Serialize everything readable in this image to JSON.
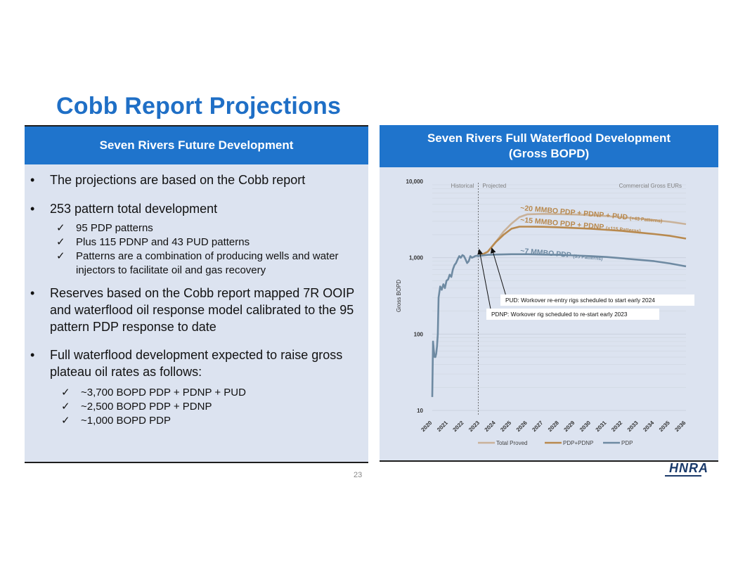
{
  "page": {
    "title": "Cobb Report Projections",
    "page_number": "23",
    "logo_text": "HNRA"
  },
  "left": {
    "header": "Seven Rivers Future Development",
    "bullets": [
      "The projections are based on the Cobb report",
      "253 pattern total development",
      "Reserves based on the Cobb report mapped 7R OOIP and waterflood oil response model calibrated to the 95 pattern PDP response to date",
      "Full waterflood development expected to raise gross plateau oil rates as follows:"
    ],
    "checks_a": [
      "95 PDP patterns",
      "Plus 115 PDNP and 43 PUD patterns",
      "Patterns are a combination of producing wells and water injectors to facilitate oil and gas recovery"
    ],
    "checks_b": [
      "~3,700 BOPD PDP + PDNP + PUD",
      "~2,500 BOPD PDP + PDNP",
      "~1,000 BOPD PDP"
    ],
    "bullet_glyph": "•",
    "check_glyph": "✓"
  },
  "right": {
    "header_line1": "Seven Rivers Full Waterflood Development",
    "header_line2": "(Gross BOPD)"
  },
  "chart_data": {
    "type": "line",
    "title": "Seven Rivers Full Waterflood Development (Gross BOPD)",
    "ylabel": "Gross BOPD",
    "yscale": "log",
    "ylim": [
      10,
      10000
    ],
    "yticks": [
      "10,000",
      "1,000",
      "100",
      "10"
    ],
    "categories": [
      "2020",
      "2021",
      "2022",
      "2023",
      "2024",
      "2025",
      "2026",
      "2027",
      "2028",
      "2029",
      "2030",
      "2031",
      "2032",
      "2033",
      "2034",
      "2035",
      "2036"
    ],
    "annotations": {
      "historical": "Historical",
      "projected": "Projected",
      "eur_header": "Commercial Gross EURs",
      "label_total": "~20 MMBO PDP + PDNP + PUD",
      "label_total_small": "(+43 Patterns)",
      "label_pdnp": "~15 MMBO PDP + PDNP",
      "label_pdnp_small": "(+115 Patterns)",
      "label_pdp": "~7 MMBO PDP",
      "label_pdp_small": "(95 Patterns)",
      "callout_pud": "PUD: Workover re-entry rigs scheduled to start early 2024",
      "callout_pdnp": "PDNP: Workover rig scheduled to re-start early 2023"
    },
    "legend": [
      "Total Proved",
      "PDP+PDNP",
      "PDP"
    ],
    "colors": {
      "total": "#c9b29a",
      "pdnp": "#b8894e",
      "pdp": "#6e8aa2"
    },
    "series": [
      {
        "name": "PDP",
        "x": [
          2020.0,
          2020.05,
          2020.1,
          2020.15,
          2020.2,
          2020.25,
          2020.3,
          2020.35,
          2020.4,
          2020.5,
          2020.6,
          2020.7,
          2020.8,
          2020.9,
          2021.0,
          2021.1,
          2021.2,
          2021.3,
          2021.4,
          2021.5,
          2021.6,
          2021.7,
          2021.8,
          2021.9,
          2022.0,
          2022.1,
          2022.2,
          2022.3,
          2022.4,
          2022.5,
          2022.6,
          2022.7,
          2022.8,
          2022.9,
          2023.0,
          2023.5,
          2024,
          2025,
          2026,
          2027,
          2028,
          2029,
          2030,
          2031,
          2032,
          2033,
          2034,
          2035,
          2036
        ],
        "values": [
          15,
          80,
          60,
          50,
          50,
          55,
          70,
          100,
          300,
          420,
          380,
          450,
          400,
          500,
          520,
          600,
          560,
          700,
          800,
          850,
          950,
          1050,
          1000,
          1080,
          1050,
          950,
          850,
          900,
          1050,
          1000,
          1020,
          1050,
          1060,
          1050,
          1060,
          1090,
          1100,
          1110,
          1110,
          1100,
          1090,
          1070,
          1050,
          1020,
          980,
          940,
          900,
          840,
          770
        ]
      },
      {
        "name": "PDP+PDNP",
        "x": [
          2023.0,
          2023.5,
          2024,
          2024.5,
          2025,
          2025.5,
          2026,
          2027,
          2028,
          2029,
          2030,
          2031,
          2032,
          2033,
          2034,
          2035,
          2036
        ],
        "values": [
          1060,
          1200,
          1600,
          2000,
          2400,
          2550,
          2550,
          2540,
          2500,
          2450,
          2400,
          2320,
          2240,
          2140,
          2040,
          1930,
          1780
        ]
      },
      {
        "name": "Total Proved",
        "x": [
          2023.0,
          2023.5,
          2024,
          2024.5,
          2025,
          2025.5,
          2026,
          2027,
          2028,
          2029,
          2030,
          2031,
          2032,
          2033,
          2034,
          2035,
          2036
        ],
        "values": [
          1060,
          1200,
          1600,
          2200,
          2800,
          3400,
          3700,
          3750,
          3720,
          3680,
          3600,
          3500,
          3380,
          3250,
          3100,
          2950,
          2750
        ]
      }
    ]
  }
}
